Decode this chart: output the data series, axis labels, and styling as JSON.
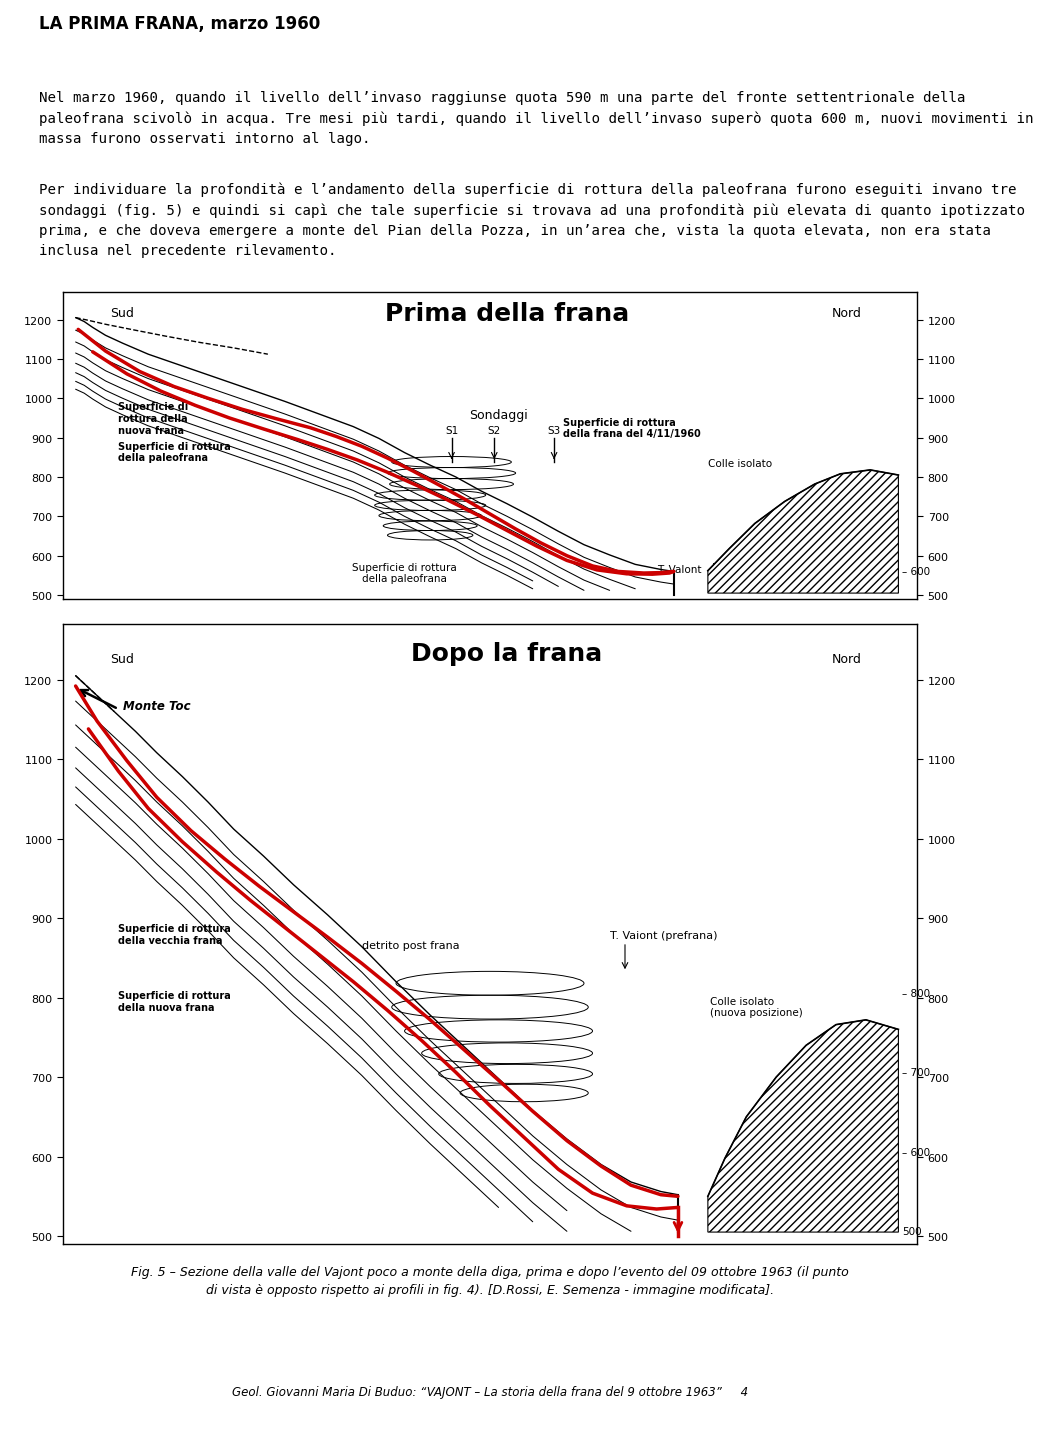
{
  "title": "LA PRIMA FRANA, marzo 1960",
  "para1": "Nel marzo 1960, quando il livello dell’invaso raggiunse quota 590 m una parte del fronte settentrionale della\npaleofrana scivolò in acqua. Tre mesi più tardi, quando il livello dell’invaso superò quota 600 m, nuovi movimenti in\nmassa furono osservati intorno al lago.",
  "para2": "Per individuare la profondità e l’andamento della superficie di rottura della paleofrana furono eseguiti invano tre\nsondaggi (fig. 5) e quindi si capì che tale superficie si trovava ad una profondità più elevata di quanto ipotizzato\nprima, e che doveva emergere a monte del Pian della Pozza, in un’area che, vista la quota elevata, non era stata\ninclusa nel precedente rilevamento.",
  "fig_cap1": "Fig. 5 – Sezione della valle del Vajont poco a monte della diga, prima e dopo l’evento del 09 ottobre 1963 (il punto",
  "fig_cap2": "di vista è opposto rispetto ai profili in fig. 4). [D.Rossi, E. Semenza - immagine modificata].",
  "footer": "Geol. Giovanni Maria Di Buduo: “VAJONT – La storia della frana del 9 ottobre 1963”     4",
  "bg": "#ffffff",
  "fg": "#000000",
  "title_fs": 12,
  "body_fs": 10.2,
  "cap_fs": 9.0,
  "foot_fs": 8.5,
  "d1_title": "Prima della frana",
  "d2_title": "Dopo la frana",
  "yticks": [
    500,
    600,
    700,
    800,
    900,
    1000,
    1100,
    1200
  ]
}
